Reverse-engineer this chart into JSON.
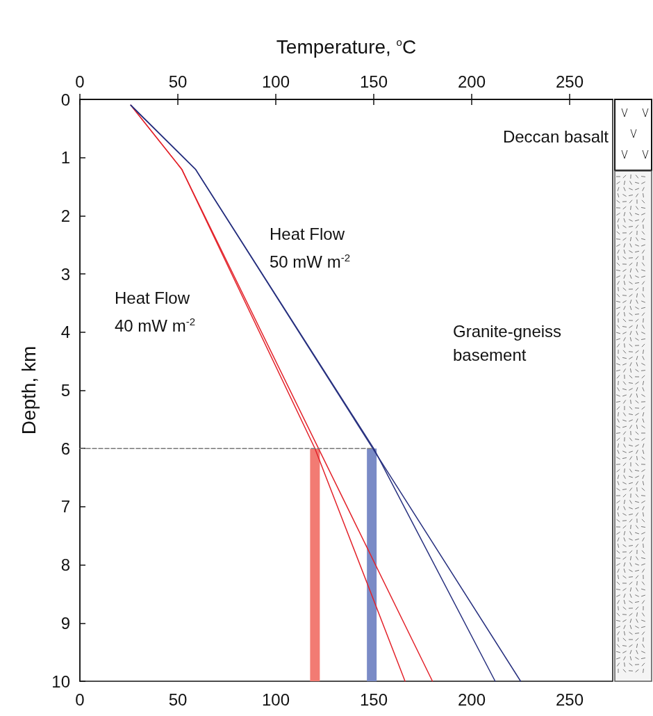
{
  "chart_data": {
    "type": "line",
    "x2label": "Temperature, $^{o}$C",
    "ylabel": "Depth, km",
    "xlim": [
      0,
      272
    ],
    "xticks": [
      0,
      50,
      100,
      150,
      200,
      250
    ],
    "x2lim": [
      0,
      272
    ],
    "x2ticks": [
      0,
      50,
      100,
      150,
      200,
      250
    ],
    "ylim": [
      10,
      0
    ],
    "yticks": [
      0,
      1,
      2,
      3,
      4,
      5,
      6,
      7,
      8,
      9,
      10
    ],
    "grid": false,
    "marker": "none",
    "series": [
      {
        "color": "#e3222a",
        "x": [
          26,
          52,
          120,
          166
        ],
        "values": [
          0.1,
          1.2,
          6,
          10
        ]
      },
      {
        "color": "#e3222a",
        "x": [
          26,
          52,
          180
        ],
        "values": [
          0.1,
          1.2,
          10
        ]
      },
      {
        "color": "#27307f",
        "x": [
          26,
          59,
          150,
          212
        ],
        "values": [
          0.1,
          1.2,
          6,
          10
        ]
      },
      {
        "color": "#27307f",
        "x": [
          26,
          59,
          225
        ],
        "values": [
          0.1,
          1.2,
          10
        ]
      },
      {
        "color": "#777777",
        "line_style": "dashed",
        "x": [
          0,
          150
        ],
        "values": [
          6,
          6
        ]
      },
      {
        "type": "bar",
        "color": "#f27b73",
        "x": [
          120
        ],
        "base": [
          6
        ],
        "values": [
          4
        ]
      },
      {
        "type": "bar",
        "color": "#7a8bc6",
        "x": [
          149
        ],
        "base": [
          6
        ],
        "values": [
          4
        ]
      }
    ],
    "annotations": [
      "Heat Flow\n40 mW m$^{-2}$",
      "Heat Flow\n50 mW m$^{-2}$",
      "Deccan basalt",
      "Granite-gneiss\nbasement"
    ]
  }
}
